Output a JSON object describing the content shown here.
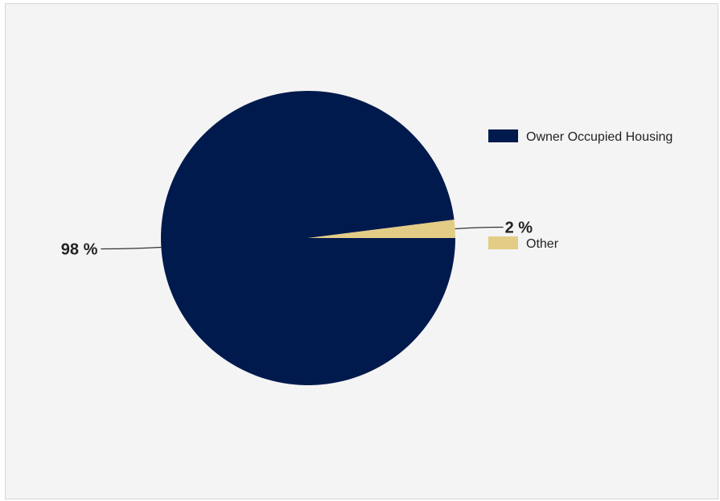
{
  "chart_data": {
    "type": "pie",
    "title": "",
    "slices": [
      {
        "label": "Owner Occupied Housing",
        "value": 98,
        "value_label": "98 %",
        "color": "#001a4d"
      },
      {
        "label": "Other",
        "value": 2,
        "value_label": "2 %",
        "color": "#e3cc85"
      }
    ],
    "legend_position": "right"
  }
}
